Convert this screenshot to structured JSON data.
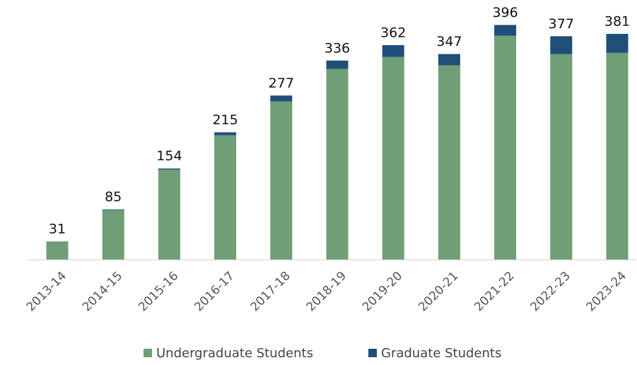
{
  "chart_data": {
    "type": "stacked_bar",
    "categories": [
      "2013-14",
      "2014-15",
      "2015-16",
      "2016-17",
      "2017-18",
      "2018-19",
      "2019-20",
      "2020-21",
      "2021-22",
      "2022-23",
      "2023-24"
    ],
    "series": [
      {
        "name": "Undergraduate Students",
        "color": "#6f9e77",
        "values": [
          31,
          84,
          152,
          210,
          267,
          322,
          342,
          328,
          378,
          347,
          349
        ]
      },
      {
        "name": "Graduate Students",
        "color": "#1f4e79",
        "values": [
          0,
          1,
          2,
          5,
          10,
          14,
          20,
          19,
          18,
          30,
          32
        ]
      }
    ],
    "totals": [
      "31",
      "85",
      "154",
      "215",
      "277",
      "336",
      "362",
      "347",
      "396",
      "377",
      "381"
    ],
    "ylim": [
      0,
      400
    ],
    "legend": "bottom"
  }
}
